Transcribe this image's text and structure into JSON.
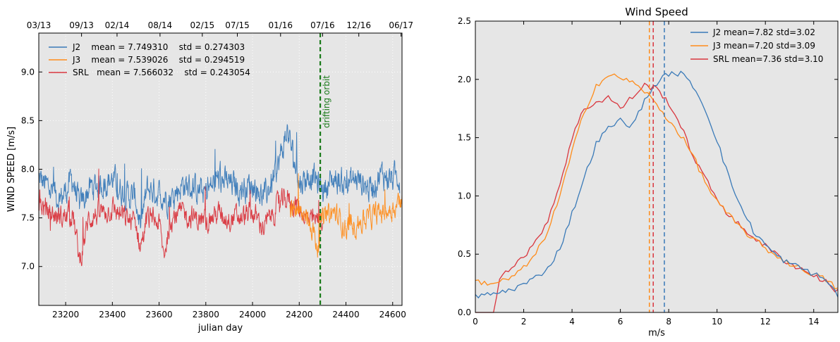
{
  "chart_data": [
    {
      "type": "line",
      "title": "",
      "xlabel": "julian day",
      "ylabel": "WIND SPEED [m/s]",
      "xlim": [
        23085,
        24640
      ],
      "ylim": [
        6.6,
        9.4
      ],
      "x_ticks": [
        23200,
        23400,
        23600,
        23800,
        24000,
        24200,
        24400,
        24600
      ],
      "y_ticks": [
        7.0,
        7.5,
        8.0,
        8.5,
        9.0
      ],
      "top_axis_ticks": [
        {
          "label": "03/13",
          "x": 23085
        },
        {
          "label": "09/13",
          "x": 23268
        },
        {
          "label": "02/14",
          "x": 23420
        },
        {
          "label": "08/14",
          "x": 23604
        },
        {
          "label": "02/15",
          "x": 23785
        },
        {
          "label": "07/15",
          "x": 23935
        },
        {
          "label": "01/16",
          "x": 24120
        },
        {
          "label": "07/16",
          "x": 24300
        },
        {
          "label": "12/16",
          "x": 24455
        },
        {
          "label": "06/17",
          "x": 24636
        }
      ],
      "grid": true,
      "background": "#e6e6e6",
      "legend_location": "top-left",
      "series": [
        {
          "name": "J2",
          "label": "J2    mean = 7.749310    std = 0.274303",
          "color": "#3a7ab8",
          "x_range": [
            23085,
            24630
          ],
          "x": [
            23085,
            23130,
            23180,
            23230,
            23260,
            23300,
            23350,
            23400,
            23450,
            23500,
            23520,
            23550,
            23600,
            23650,
            23700,
            23750,
            23800,
            23850,
            23900,
            23950,
            24000,
            24050,
            24100,
            24150,
            24200,
            24250,
            24300,
            24350,
            24400,
            24450,
            24500,
            24550,
            24600,
            24630
          ],
          "y": [
            7.9,
            7.8,
            7.7,
            7.9,
            7.6,
            7.8,
            7.85,
            7.9,
            7.75,
            7.7,
            7.4,
            7.8,
            7.75,
            7.7,
            7.85,
            7.8,
            7.75,
            7.9,
            7.85,
            7.8,
            7.85,
            7.7,
            7.95,
            8.4,
            7.85,
            7.95,
            7.8,
            7.9,
            7.85,
            7.9,
            7.8,
            7.95,
            7.9,
            7.95
          ]
        },
        {
          "name": "J3",
          "label": "J3    mean = 7.539026    std = 0.294519",
          "color": "#ff8c1a",
          "x_range": [
            24160,
            24640
          ],
          "x": [
            24160,
            24200,
            24250,
            24280,
            24300,
            24350,
            24400,
            24450,
            24500,
            24550,
            24600,
            24640
          ],
          "y": [
            7.6,
            7.55,
            7.45,
            7.2,
            7.5,
            7.55,
            7.4,
            7.45,
            7.5,
            7.55,
            7.6,
            7.7
          ]
        },
        {
          "name": "SRL",
          "label": "SRL   mean = 7.566032    std = 0.243054",
          "color": "#d9363e",
          "x_range": [
            23085,
            24300
          ],
          "x": [
            23085,
            23130,
            23180,
            23230,
            23260,
            23300,
            23350,
            23400,
            23450,
            23500,
            23520,
            23550,
            23600,
            23620,
            23650,
            23700,
            23750,
            23800,
            23850,
            23900,
            23950,
            24000,
            24050,
            24100,
            24150,
            24200,
            24250,
            24300
          ],
          "y": [
            7.65,
            7.55,
            7.5,
            7.55,
            7.05,
            7.5,
            7.55,
            7.6,
            7.5,
            7.45,
            7.2,
            7.5,
            7.45,
            7.1,
            7.5,
            7.55,
            7.5,
            7.45,
            7.55,
            7.5,
            7.5,
            7.55,
            7.4,
            7.6,
            7.7,
            7.6,
            7.45,
            7.5
          ]
        }
      ],
      "annotations": [
        {
          "type": "vline",
          "x": 24290,
          "color": "#1a7a1a",
          "style": "dashed",
          "text": "drifting orbit"
        }
      ]
    },
    {
      "type": "line",
      "title": "Wind Speed",
      "xlabel": "m/s",
      "ylabel": "",
      "xlim": [
        0,
        15
      ],
      "ylim": [
        0,
        2.5
      ],
      "x_ticks": [
        0,
        2,
        4,
        6,
        8,
        10,
        12,
        14
      ],
      "y_ticks": [
        0.0,
        0.5,
        1.0,
        1.5,
        2.0,
        2.5
      ],
      "grid": false,
      "background": "#e6e6e6",
      "legend_location": "top-right",
      "series": [
        {
          "name": "J2",
          "label": "J2  mean=7.82 std=3.02",
          "color": "#3a7ab8",
          "x": [
            0,
            0.5,
            1,
            1.5,
            2,
            2.5,
            3,
            3.5,
            4,
            4.5,
            5,
            5.5,
            6,
            6.5,
            7,
            7.5,
            8,
            8.5,
            9,
            9.5,
            10,
            10.5,
            11,
            11.5,
            12,
            12.5,
            13,
            13.5,
            14,
            14.5,
            15
          ],
          "y": [
            0.14,
            0.15,
            0.17,
            0.2,
            0.24,
            0.3,
            0.38,
            0.55,
            0.85,
            1.15,
            1.45,
            1.58,
            1.65,
            1.6,
            1.82,
            1.97,
            2.05,
            2.05,
            1.95,
            1.75,
            1.48,
            1.15,
            0.9,
            0.7,
            0.58,
            0.48,
            0.42,
            0.38,
            0.33,
            0.28,
            0.15
          ]
        },
        {
          "name": "J3",
          "label": "J3  mean=7.20 std=3.09",
          "color": "#ff8c1a",
          "x": [
            0,
            0.5,
            1,
            1.5,
            2,
            2.5,
            3,
            3.5,
            4,
            4.5,
            5,
            5.5,
            6,
            6.5,
            7,
            7.5,
            8,
            8.5,
            9,
            9.5,
            10,
            10.5,
            11,
            11.5,
            12,
            12.5,
            13,
            13.5,
            14,
            14.5,
            15
          ],
          "y": [
            0.27,
            0.25,
            0.26,
            0.3,
            0.38,
            0.5,
            0.7,
            1.0,
            1.38,
            1.72,
            1.95,
            2.03,
            2.02,
            1.97,
            1.9,
            1.78,
            1.65,
            1.52,
            1.35,
            1.12,
            0.95,
            0.83,
            0.72,
            0.63,
            0.55,
            0.48,
            0.42,
            0.37,
            0.33,
            0.28,
            0.2
          ]
        },
        {
          "name": "SRL",
          "label": "SRL mean=7.36 std=3.10",
          "color": "#d9363e",
          "x": [
            0,
            0.8,
            1,
            1.5,
            2,
            2.5,
            3,
            3.5,
            4,
            4.5,
            5,
            5.5,
            6,
            6.5,
            7,
            7.5,
            8,
            8.5,
            9,
            9.5,
            10,
            10.5,
            11,
            11.5,
            12,
            12.5,
            13,
            13.5,
            14,
            14.5,
            15
          ],
          "y": [
            0.0,
            0.0,
            0.3,
            0.4,
            0.48,
            0.6,
            0.8,
            1.1,
            1.5,
            1.75,
            1.8,
            1.85,
            1.75,
            1.85,
            1.95,
            1.92,
            1.8,
            1.6,
            1.35,
            1.15,
            0.98,
            0.83,
            0.73,
            0.65,
            0.57,
            0.49,
            0.42,
            0.37,
            0.32,
            0.26,
            0.18
          ]
        }
      ],
      "annotations": [
        {
          "type": "vline",
          "x": 7.2,
          "color": "#ff8c1a",
          "style": "dashed"
        },
        {
          "type": "vline",
          "x": 7.36,
          "color": "#d9363e",
          "style": "dashed"
        },
        {
          "type": "vline",
          "x": 7.82,
          "color": "#3a7ab8",
          "style": "dashed"
        }
      ]
    }
  ]
}
